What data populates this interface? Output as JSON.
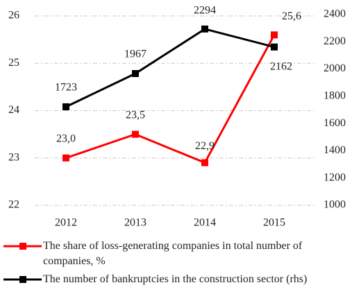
{
  "chart_data": {
    "type": "line",
    "categories": [
      "2012",
      "2013",
      "2014",
      "2015"
    ],
    "series": [
      {
        "name": "The share of loss-generating companies in total number of companies, %",
        "color": "#ff0000",
        "values": [
          23.0,
          23.5,
          22.9,
          25.6
        ],
        "value_labels": [
          "23,0",
          "23,5",
          "22,9",
          "25,6"
        ]
      },
      {
        "name": "The number of bankruptcies in the construction sector (rhs)",
        "color": "#000000",
        "axis": "y2",
        "values": [
          1723,
          1967,
          2294,
          2162
        ]
      }
    ],
    "ylim": [
      22,
      26
    ],
    "yticks": [
      22,
      23,
      24,
      25,
      26
    ],
    "y2lim": [
      1000,
      2400
    ],
    "y2ticks": [
      1000,
      1200,
      1400,
      1600,
      1800,
      2000,
      2200,
      2400
    ],
    "grid": true,
    "legend": "bottom"
  }
}
